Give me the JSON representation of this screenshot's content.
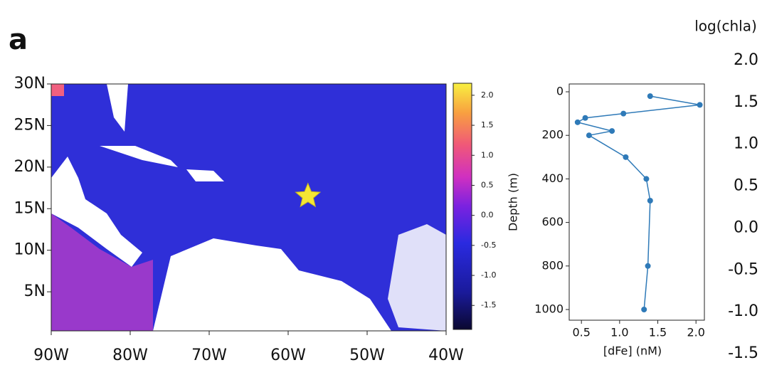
{
  "panel_label": "a",
  "chart_data": [
    {
      "type": "map",
      "xlim": [
        -90,
        -40
      ],
      "xticks": [
        {
          "value": -90,
          "label": "90W"
        },
        {
          "value": -80,
          "label": "80W"
        },
        {
          "value": -70,
          "label": "70W"
        },
        {
          "value": -60,
          "label": "60W"
        },
        {
          "value": -50,
          "label": "50W"
        },
        {
          "value": -40,
          "label": "40W"
        }
      ],
      "ylim": [
        0.3,
        30
      ],
      "yticks": [
        {
          "value": 5,
          "label": "5N"
        },
        {
          "value": 10,
          "label": "10N"
        },
        {
          "value": 15,
          "label": "15N"
        },
        {
          "value": 20,
          "label": "20N"
        },
        {
          "value": 25,
          "label": "25N"
        },
        {
          "value": 30,
          "label": "30N"
        }
      ],
      "station": {
        "x": -57.5,
        "y": 16.5,
        "color": "#f5e634"
      },
      "colorbar": {
        "lim": [
          -1.9,
          2.2
        ],
        "ticks": [
          {
            "value": -1.5,
            "label": "-1.5"
          },
          {
            "value": -1,
            "label": "-1.0"
          },
          {
            "value": -0.5,
            "label": "-0.5"
          },
          {
            "value": 0,
            "label": "0.0"
          },
          {
            "value": 0.5,
            "label": "0.5"
          },
          {
            "value": 1,
            "label": "1.0"
          },
          {
            "value": 1.5,
            "label": "1.5"
          },
          {
            "value": 2,
            "label": "2.0"
          }
        ]
      }
    },
    {
      "type": "scatter-line",
      "xlabel": "[dFe] (nM)",
      "ylabel": "Depth (m)",
      "color": "#2f7ab8",
      "x": [
        1.4,
        2.05,
        1.05,
        0.55,
        0.45,
        0.9,
        0.6,
        1.08,
        1.35,
        1.4,
        1.37,
        1.32
      ],
      "y": [
        20,
        60,
        100,
        120,
        140,
        180,
        200,
        300,
        400,
        500,
        800,
        1000
      ],
      "xlim": [
        0.34,
        2.11
      ],
      "xticks": [
        0.5,
        {
          "value": 1,
          "label": "1.0"
        },
        1.5,
        {
          "value": 2,
          "label": "2.0"
        }
      ],
      "ylim": [
        1049,
        -36
      ],
      "yticks": [
        0,
        200,
        400,
        600,
        800,
        1000
      ]
    },
    {
      "type": "axis",
      "title": "log(chla)",
      "lim": [
        -1.5,
        2.0
      ],
      "ticks": [
        {
          "value": 2,
          "label": "2.0"
        },
        {
          "value": 1.5,
          "label": "1.5"
        },
        {
          "value": 1,
          "label": "1.0"
        },
        {
          "value": 0.5,
          "label": "0.5"
        },
        {
          "value": 0,
          "label": "0.0"
        },
        {
          "value": -0.5,
          "label": "-0.5"
        },
        {
          "value": -1,
          "label": "-1.0"
        },
        {
          "value": -1.5,
          "label": "-1.5"
        }
      ]
    }
  ]
}
